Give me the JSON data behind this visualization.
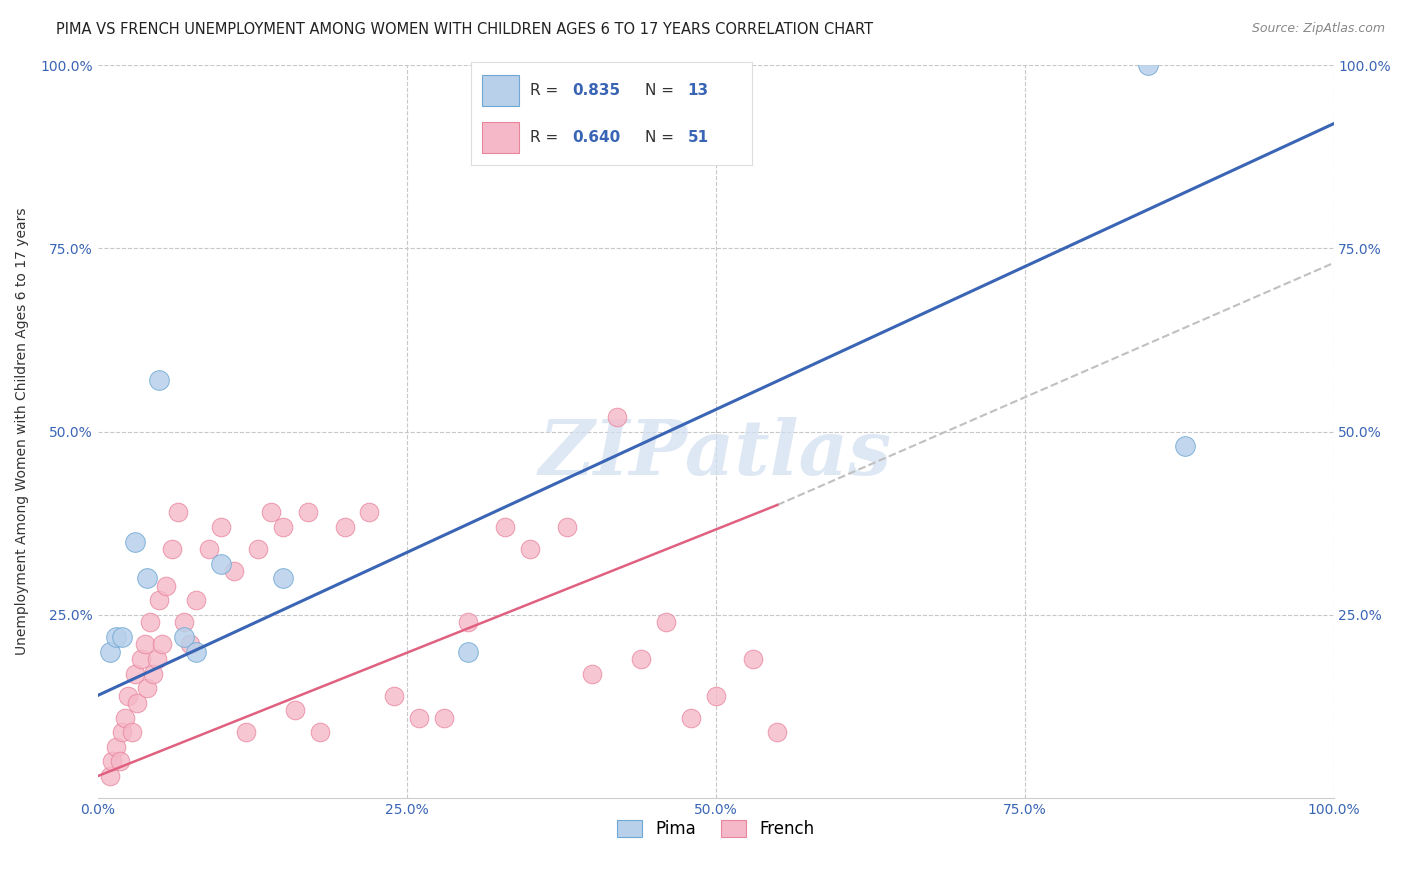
{
  "title": "PIMA VS FRENCH UNEMPLOYMENT AMONG WOMEN WITH CHILDREN AGES 6 TO 17 YEARS CORRELATION CHART",
  "source": "Source: ZipAtlas.com",
  "ylabel": "Unemployment Among Women with Children Ages 6 to 17 years",
  "pima_x": [
    1.0,
    1.5,
    2.0,
    3.0,
    4.0,
    5.0,
    7.0,
    8.0,
    10.0,
    15.0,
    30.0,
    85.0,
    88.0
  ],
  "pima_y": [
    20.0,
    22.0,
    22.0,
    35.0,
    30.0,
    57.0,
    22.0,
    20.0,
    32.0,
    30.0,
    20.0,
    100.0,
    48.0
  ],
  "french_x": [
    1.0,
    1.2,
    1.5,
    1.8,
    2.0,
    2.2,
    2.5,
    2.8,
    3.0,
    3.2,
    3.5,
    3.8,
    4.0,
    4.2,
    4.5,
    4.8,
    5.0,
    5.2,
    5.5,
    6.0,
    6.5,
    7.0,
    7.5,
    8.0,
    9.0,
    10.0,
    11.0,
    12.0,
    13.0,
    14.0,
    15.0,
    16.0,
    17.0,
    18.0,
    20.0,
    22.0,
    24.0,
    26.0,
    28.0,
    30.0,
    33.0,
    35.0,
    38.0,
    40.0,
    42.0,
    44.0,
    46.0,
    48.0,
    50.0,
    53.0,
    55.0
  ],
  "french_y": [
    3.0,
    5.0,
    7.0,
    5.0,
    9.0,
    11.0,
    14.0,
    9.0,
    17.0,
    13.0,
    19.0,
    21.0,
    15.0,
    24.0,
    17.0,
    19.0,
    27.0,
    21.0,
    29.0,
    34.0,
    39.0,
    24.0,
    21.0,
    27.0,
    34.0,
    37.0,
    31.0,
    9.0,
    34.0,
    39.0,
    37.0,
    12.0,
    39.0,
    9.0,
    37.0,
    39.0,
    14.0,
    11.0,
    11.0,
    24.0,
    37.0,
    34.0,
    37.0,
    17.0,
    52.0,
    19.0,
    24.0,
    11.0,
    14.0,
    19.0,
    9.0
  ],
  "pima_color": "#b8d0ea",
  "french_color": "#f5b8c8",
  "pima_edge_color": "#6fa8d4",
  "french_edge_color": "#e8849c",
  "blue_line_color": "#3a65b5",
  "pink_line_color": "#e06080",
  "grey_dash_color": "#c0c0c0",
  "R_pima": "0.835",
  "N_pima": "13",
  "R_french": "0.640",
  "N_french": "51",
  "watermark": "ZIPatlas",
  "watermark_color": "#d0dff0",
  "grid_color": "#c8c8c8",
  "title_fontsize": 10.5,
  "axis_label_fontsize": 10,
  "tick_label_color": "#3a65b5",
  "legend_R_color": "#3a65b5",
  "xlim": [
    0,
    100
  ],
  "ylim": [
    0,
    100
  ],
  "xticks": [
    0,
    25,
    50,
    75,
    100
  ],
  "yticks": [
    0,
    25,
    50,
    75,
    100
  ],
  "xticklabels": [
    "0.0%",
    "25.0%",
    "50.0%",
    "75.0%",
    "100.0%"
  ],
  "yticklabels": [
    "",
    "25.0%",
    "50.0%",
    "75.0%",
    "100.0%"
  ],
  "blue_line_x0": 0,
  "blue_line_y0": 14,
  "blue_line_x1": 100,
  "blue_line_y1": 92,
  "pink_line_x0": 0,
  "pink_line_y0": 3,
  "pink_line_x1": 55,
  "pink_line_y1": 40,
  "grey_dash_x0": 55,
  "grey_dash_y0": 40,
  "grey_dash_x1": 100,
  "grey_dash_y1": 73
}
